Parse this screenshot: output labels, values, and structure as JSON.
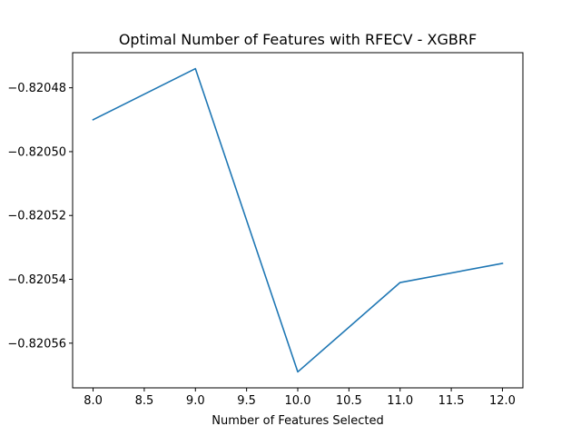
{
  "chart_data": {
    "type": "line",
    "title": "Optimal Number of Features with RFECV - XGBRF",
    "xlabel": "Number of Features Selected",
    "ylabel": "",
    "x": [
      8,
      9,
      10,
      11,
      12
    ],
    "series": [
      {
        "color": "#1f77b4",
        "values": [
          -0.82049,
          -0.820474,
          -0.820569,
          -0.820541,
          -0.820535
        ]
      }
    ],
    "xlim": [
      7.8,
      12.2
    ],
    "ylim": [
      -0.820574,
      -0.820469
    ],
    "x_ticks": [
      8.0,
      8.5,
      9.0,
      9.5,
      10.0,
      10.5,
      11.0,
      11.5,
      12.0
    ],
    "x_tick_labels": [
      "8.0",
      "8.5",
      "9.0",
      "9.5",
      "10.0",
      "10.5",
      "11.0",
      "11.5",
      "12.0"
    ],
    "y_ticks": [
      -0.82048,
      -0.8205,
      -0.82052,
      -0.82054,
      -0.82056
    ],
    "y_tick_labels": [
      "−0.82048",
      "−0.82050",
      "−0.82052",
      "−0.82054",
      "−0.82056"
    ],
    "grid": false,
    "legend": "none"
  }
}
